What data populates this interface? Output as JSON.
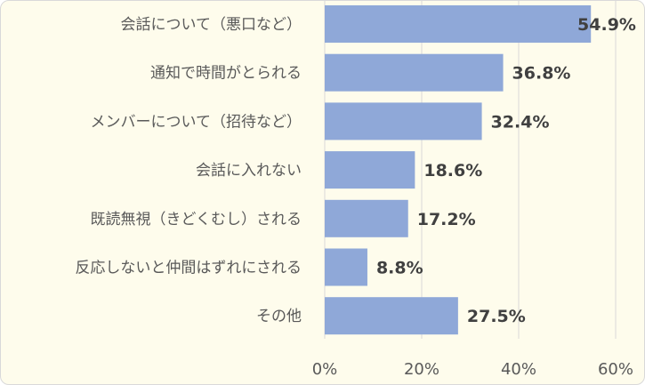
{
  "chart_data": {
    "type": "bar",
    "orientation": "horizontal",
    "categories": [
      "会話について（悪口など）",
      "通知で時間がとられる",
      "メンバーについて（招待など）",
      "会話に入れない",
      "既読無視（きどくむし）される",
      "反応しないと仲間はずれにされる",
      "その他"
    ],
    "values": [
      54.9,
      36.8,
      32.4,
      18.6,
      17.2,
      8.8,
      27.5
    ],
    "data_labels": [
      "54.9%",
      "36.8%",
      "32.4%",
      "18.6%",
      "17.2%",
      "8.8%",
      "27.5%"
    ],
    "x_ticks": [
      "0%",
      "20%",
      "40%",
      "60%"
    ],
    "x_tick_values": [
      0,
      20,
      40,
      60
    ],
    "xlim": [
      0,
      60
    ],
    "grid": true,
    "legend": "none",
    "colors": {
      "bar": "#8fa8d8",
      "background": "#fefcec",
      "grid": "#d9d9d9"
    }
  }
}
